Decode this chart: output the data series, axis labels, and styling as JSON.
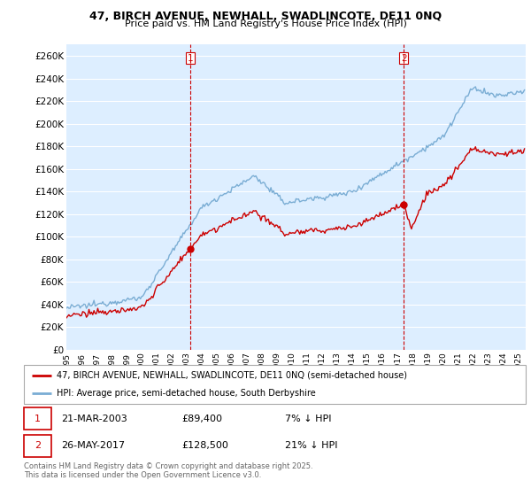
{
  "title1": "47, BIRCH AVENUE, NEWHALL, SWADLINCOTE, DE11 0NQ",
  "title2": "Price paid vs. HM Land Registry's House Price Index (HPI)",
  "ylabel_ticks": [
    "£0",
    "£20K",
    "£40K",
    "£60K",
    "£80K",
    "£100K",
    "£120K",
    "£140K",
    "£160K",
    "£180K",
    "£200K",
    "£220K",
    "£240K",
    "£260K"
  ],
  "ytick_values": [
    0,
    20000,
    40000,
    60000,
    80000,
    100000,
    120000,
    140000,
    160000,
    180000,
    200000,
    220000,
    240000,
    260000
  ],
  "ylim": [
    0,
    270000
  ],
  "legend_house": "47, BIRCH AVENUE, NEWHALL, SWADLINCOTE, DE11 0NQ (semi-detached house)",
  "legend_hpi": "HPI: Average price, semi-detached house, South Derbyshire",
  "transaction1_date": "21-MAR-2003",
  "transaction1_price": "£89,400",
  "transaction1_note": "7% ↓ HPI",
  "transaction2_date": "26-MAY-2017",
  "transaction2_price": "£128,500",
  "transaction2_note": "21% ↓ HPI",
  "footer": "Contains HM Land Registry data © Crown copyright and database right 2025.\nThis data is licensed under the Open Government Licence v3.0.",
  "house_color": "#cc0000",
  "hpi_color": "#7aadd4",
  "bg_color": "#ddeeff",
  "transaction1_x": 2003.22,
  "transaction2_x": 2017.4,
  "transaction1_price_val": 89400,
  "transaction2_price_val": 128500,
  "xmin": 1995,
  "xmax": 2025.5,
  "xticks": [
    1995,
    1996,
    1997,
    1998,
    1999,
    2000,
    2001,
    2002,
    2003,
    2004,
    2005,
    2006,
    2007,
    2008,
    2009,
    2010,
    2011,
    2012,
    2013,
    2014,
    2015,
    2016,
    2017,
    2018,
    2019,
    2020,
    2021,
    2022,
    2023,
    2024,
    2025
  ]
}
